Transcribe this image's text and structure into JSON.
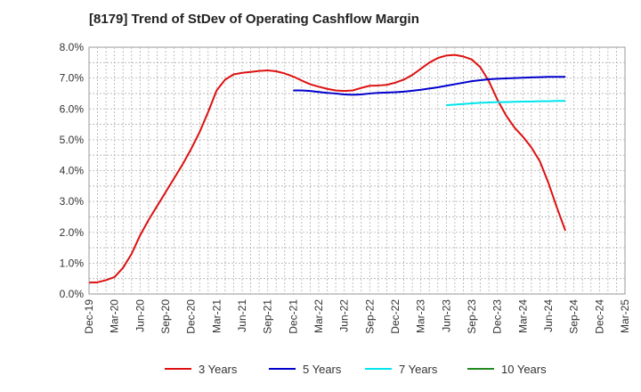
{
  "chart_data": {
    "type": "line",
    "title": "[8179]  Trend of StDev of Operating Cashflow Margin",
    "xlabel": "",
    "ylabel": "",
    "x_ticks": [
      "Dec-19",
      "Mar-20",
      "Jun-20",
      "Sep-20",
      "Dec-20",
      "Mar-21",
      "Jun-21",
      "Sep-21",
      "Dec-21",
      "Mar-22",
      "Jun-22",
      "Sep-22",
      "Dec-22",
      "Mar-23",
      "Jun-23",
      "Sep-23",
      "Dec-23",
      "Mar-24",
      "Jun-24",
      "Sep-24",
      "Dec-24",
      "Mar-25"
    ],
    "y_ticks": [
      "0.0%",
      "1.0%",
      "2.0%",
      "3.0%",
      "4.0%",
      "5.0%",
      "6.0%",
      "7.0%",
      "8.0%"
    ],
    "ylim": [
      0,
      8
    ],
    "grid": true,
    "legend_position": "bottom",
    "x_unit": "month index from Dec-19",
    "series": [
      {
        "name": "3 Years",
        "color": "#dd1111",
        "points": [
          [
            0,
            0.37
          ],
          [
            1,
            0.38
          ],
          [
            2,
            0.45
          ],
          [
            3,
            0.55
          ],
          [
            4,
            0.85
          ],
          [
            5,
            1.3
          ],
          [
            6,
            1.9
          ],
          [
            7,
            2.4
          ],
          [
            8,
            2.85
          ],
          [
            9,
            3.3
          ],
          [
            10,
            3.75
          ],
          [
            11,
            4.2
          ],
          [
            12,
            4.7
          ],
          [
            13,
            5.25
          ],
          [
            14,
            5.9
          ],
          [
            15,
            6.6
          ],
          [
            16,
            6.95
          ],
          [
            17,
            7.12
          ],
          [
            18,
            7.17
          ],
          [
            19,
            7.2
          ],
          [
            20,
            7.23
          ],
          [
            21,
            7.25
          ],
          [
            22,
            7.22
          ],
          [
            23,
            7.15
          ],
          [
            24,
            7.05
          ],
          [
            25,
            6.92
          ],
          [
            26,
            6.8
          ],
          [
            27,
            6.72
          ],
          [
            28,
            6.65
          ],
          [
            29,
            6.6
          ],
          [
            30,
            6.58
          ],
          [
            31,
            6.6
          ],
          [
            32,
            6.68
          ],
          [
            33,
            6.75
          ],
          [
            34,
            6.76
          ],
          [
            35,
            6.78
          ],
          [
            36,
            6.85
          ],
          [
            37,
            6.95
          ],
          [
            38,
            7.1
          ],
          [
            39,
            7.3
          ],
          [
            40,
            7.5
          ],
          [
            41,
            7.65
          ],
          [
            42,
            7.73
          ],
          [
            43,
            7.75
          ],
          [
            44,
            7.7
          ],
          [
            45,
            7.6
          ],
          [
            46,
            7.35
          ],
          [
            47,
            6.9
          ],
          [
            48,
            6.3
          ],
          [
            49,
            5.8
          ],
          [
            50,
            5.4
          ],
          [
            51,
            5.1
          ],
          [
            52,
            4.75
          ],
          [
            53,
            4.3
          ],
          [
            54,
            3.6
          ],
          [
            55,
            2.8
          ],
          [
            56,
            2.05
          ]
        ]
      },
      {
        "name": "5 Years",
        "color": "#0000cc",
        "points": [
          [
            24,
            6.6
          ],
          [
            25,
            6.6
          ],
          [
            26,
            6.58
          ],
          [
            27,
            6.55
          ],
          [
            28,
            6.52
          ],
          [
            29,
            6.5
          ],
          [
            30,
            6.47
          ],
          [
            31,
            6.46
          ],
          [
            32,
            6.47
          ],
          [
            33,
            6.5
          ],
          [
            34,
            6.52
          ],
          [
            35,
            6.53
          ],
          [
            36,
            6.54
          ],
          [
            37,
            6.56
          ],
          [
            38,
            6.59
          ],
          [
            39,
            6.62
          ],
          [
            40,
            6.66
          ],
          [
            41,
            6.7
          ],
          [
            42,
            6.75
          ],
          [
            43,
            6.8
          ],
          [
            44,
            6.85
          ],
          [
            45,
            6.9
          ],
          [
            46,
            6.93
          ],
          [
            47,
            6.96
          ],
          [
            48,
            6.98
          ],
          [
            49,
            6.99
          ],
          [
            50,
            7.0
          ],
          [
            51,
            7.01
          ],
          [
            52,
            7.02
          ],
          [
            53,
            7.03
          ],
          [
            54,
            7.04
          ],
          [
            55,
            7.04
          ],
          [
            56,
            7.04
          ]
        ]
      },
      {
        "name": "7 Years",
        "color": "#00e5ee",
        "points": [
          [
            42,
            6.12
          ],
          [
            43,
            6.14
          ],
          [
            44,
            6.16
          ],
          [
            45,
            6.18
          ],
          [
            46,
            6.2
          ],
          [
            47,
            6.21
          ],
          [
            48,
            6.22
          ],
          [
            49,
            6.22
          ],
          [
            50,
            6.23
          ],
          [
            51,
            6.24
          ],
          [
            52,
            6.24
          ],
          [
            53,
            6.25
          ],
          [
            54,
            6.25
          ],
          [
            55,
            6.26
          ],
          [
            56,
            6.26
          ]
        ]
      },
      {
        "name": "10 Years",
        "color": "#228b22",
        "points": []
      }
    ]
  }
}
